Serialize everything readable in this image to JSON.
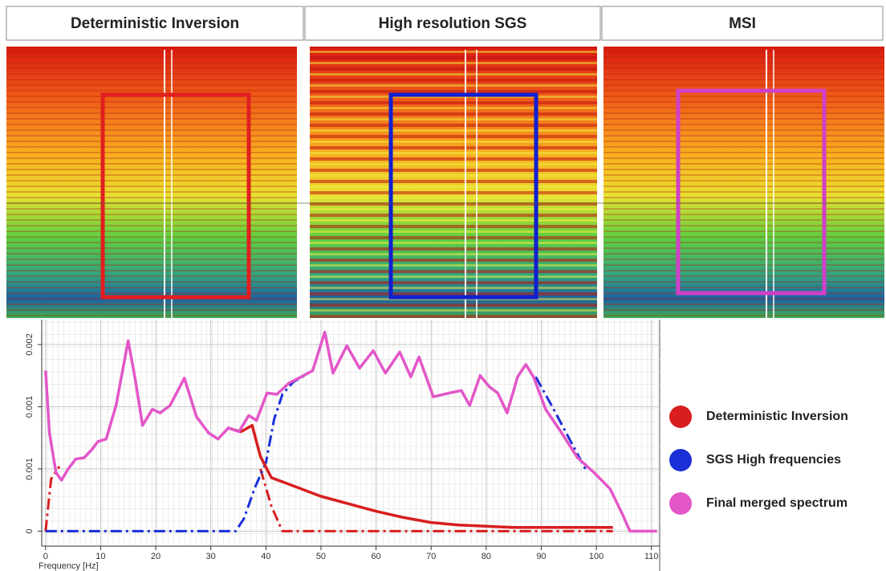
{
  "panels": [
    {
      "title": "Deterministic Inversion"
    },
    {
      "title": "High resolution SGS"
    },
    {
      "title": "MSI"
    }
  ],
  "chart_data": {
    "type": "line",
    "x_label": "Frequency [Hz]",
    "xlim": [
      -0.7,
      111.5
    ],
    "ylim": [
      -0.00012,
      0.0017
    ],
    "xticks": [
      0,
      10,
      20,
      30,
      40,
      50,
      60,
      70,
      80,
      90,
      100,
      110
    ],
    "yticks": [
      0,
      {
        "value": 0.0005,
        "label": "0.001"
      },
      {
        "value": 0.001,
        "label": "0.001"
      },
      {
        "value": 0.0015,
        "label": "0.002"
      }
    ],
    "grid": true,
    "legend": "right",
    "series": [
      {
        "name": "Deterministic Inversion",
        "color": "#d81e1e",
        "line_style": "solid",
        "x": [
          33,
          35.5,
          37.5,
          39,
          41,
          44,
          47,
          50,
          55,
          60,
          65,
          70,
          75,
          80,
          85,
          90,
          103
        ],
        "values": [
          0.00083,
          0.0008,
          0.00085,
          0.0006,
          0.00043,
          0.00038,
          0.00033,
          0.00028,
          0.00022,
          0.00016,
          0.00011,
          7e-05,
          5e-05,
          4e-05,
          3e-05,
          3e-05,
          3e-05
        ]
      },
      {
        "color": "#d81e1e",
        "line_style": "dashdot",
        "x": [
          0,
          1,
          2.5,
          37.5,
          39,
          41,
          43,
          103
        ],
        "values": [
          0,
          0.00042,
          0.00052,
          null,
          0.0005,
          0.0002,
          0,
          0
        ]
      },
      {
        "name": "SGS High frequencies",
        "color": "#1a2fd6",
        "line_style": "dashdot",
        "x": [
          0,
          34.5,
          36,
          38,
          40,
          41.5,
          43,
          45,
          47,
          87,
          89,
          92,
          95,
          98
        ],
        "values": [
          0,
          0,
          0.0001,
          0.00035,
          0.00055,
          0.0009,
          0.0011,
          0.0012,
          0.00125,
          null,
          0.00124,
          0.001,
          0.00075,
          0.0005
        ]
      },
      {
        "name": "Final merged spectrum",
        "color": "#e356c8",
        "line_style": "solid",
        "x": [
          0,
          0.7,
          1.9,
          2.9,
          4.1,
          5.5,
          7,
          8.5,
          9.5,
          11,
          12.8,
          15,
          16.2,
          17.6,
          19.4,
          20.8,
          22.6,
          25.2,
          27.4,
          29.6,
          31.3,
          33.2,
          35.1,
          36.9,
          38.3,
          40.2,
          42,
          44.2,
          46.4,
          48.5,
          50.7,
          52.2,
          54.7,
          57,
          59.5,
          61.7,
          64.3,
          66.3,
          67.8,
          70.4,
          73.3,
          75.5,
          77,
          78.9,
          80.6,
          82.1,
          83.8,
          85.7,
          87.2,
          88.6,
          90.8,
          93.7,
          96.6,
          99.6,
          102.5,
          104.7,
          106.1,
          111
        ],
        "values": [
          0.00129,
          0.00079,
          0.00047,
          0.00041,
          0.0005,
          0.00058,
          0.00059,
          0.00066,
          0.00072,
          0.00074,
          0.00101,
          0.00153,
          0.00124,
          0.00085,
          0.00098,
          0.00095,
          0.00101,
          0.00123,
          0.00092,
          0.00079,
          0.00074,
          0.00083,
          0.0008,
          0.00093,
          0.00089,
          0.00111,
          0.0011,
          0.00119,
          0.00124,
          0.00129,
          0.0016,
          0.00127,
          0.00149,
          0.00131,
          0.00145,
          0.00127,
          0.00144,
          0.00124,
          0.0014,
          0.00108,
          0.00111,
          0.00113,
          0.00101,
          0.00125,
          0.00116,
          0.00111,
          0.00095,
          0.00124,
          0.00134,
          0.00124,
          0.00098,
          0.00079,
          0.00059,
          0.00047,
          0.00034,
          0.00014,
          0,
          0
        ]
      }
    ]
  }
}
